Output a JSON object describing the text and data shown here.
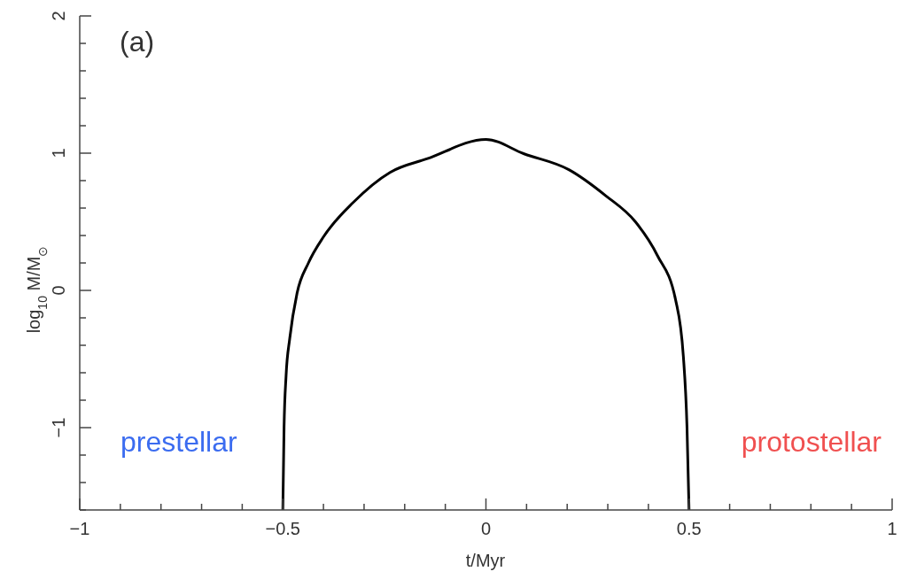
{
  "chart_data": {
    "type": "line",
    "xlabel": "t/Myr",
    "ylabel": "log$_{10}$ M/M$_{⊙}$",
    "annotations": [
      "(a)",
      "prestellar",
      "protostellar"
    ],
    "series": [
      {
        "color": "#000000",
        "x": [
          -0.5,
          -0.497,
          -0.492,
          -0.483,
          -0.465,
          -0.437,
          -0.4,
          -0.327,
          -0.236,
          -0.144,
          0,
          0.094,
          0.204,
          0.295,
          0.368,
          0.422,
          0.467,
          0.486,
          0.495,
          0.5
        ],
        "values": [
          -1.6,
          -1.0,
          -0.62,
          -0.35,
          -0.02,
          0.2,
          0.39,
          0.64,
          0.86,
          0.96,
          1.1,
          0.995,
          0.88,
          0.69,
          0.5,
          0.255,
          -0.07,
          -0.48,
          -1.0,
          -1.6
        ]
      }
    ],
    "xlim": [
      -1,
      1
    ],
    "ylim": [
      -1.6,
      2
    ],
    "xticks": [
      {
        "value": -1,
        "label": "−1"
      },
      {
        "value": -0.9,
        "label": null
      },
      {
        "value": -0.8,
        "label": null
      },
      {
        "value": -0.7,
        "label": null
      },
      {
        "value": -0.6,
        "label": null
      },
      {
        "value": -0.5,
        "label": "−0.5"
      },
      {
        "value": -0.4,
        "label": null
      },
      {
        "value": -0.3,
        "label": null
      },
      {
        "value": -0.2,
        "label": null
      },
      {
        "value": -0.1,
        "label": null
      },
      0,
      {
        "value": 0.1,
        "label": null
      },
      {
        "value": 0.2,
        "label": null
      },
      {
        "value": 0.3,
        "label": null
      },
      {
        "value": 0.4,
        "label": null
      },
      0.5,
      {
        "value": 0.6,
        "label": null
      },
      {
        "value": 0.7,
        "label": null
      },
      {
        "value": 0.8,
        "label": null
      },
      {
        "value": 0.9,
        "label": null
      },
      1
    ],
    "yticks": [
      {
        "value": -1.6,
        "label": null
      },
      {
        "value": -1.4,
        "label": null
      },
      {
        "value": -1.2,
        "label": null
      },
      {
        "value": -1,
        "label": "−1"
      },
      {
        "value": -0.8,
        "label": null
      },
      {
        "value": -0.6,
        "label": null
      },
      {
        "value": -0.4,
        "label": null
      },
      {
        "value": -0.2,
        "label": null
      },
      0,
      {
        "value": 0.2,
        "label": null
      },
      {
        "value": 0.4,
        "label": null
      },
      {
        "value": 0.6,
        "label": null
      },
      {
        "value": 0.8,
        "label": null
      },
      1,
      {
        "value": 1.2,
        "label": null
      },
      {
        "value": 1.4,
        "label": null
      },
      {
        "value": 1.6,
        "label": null
      },
      {
        "value": 1.8,
        "label": null
      },
      2
    ],
    "grid": false,
    "legend": false,
    "marker": "none",
    "line_style": "solid"
  }
}
